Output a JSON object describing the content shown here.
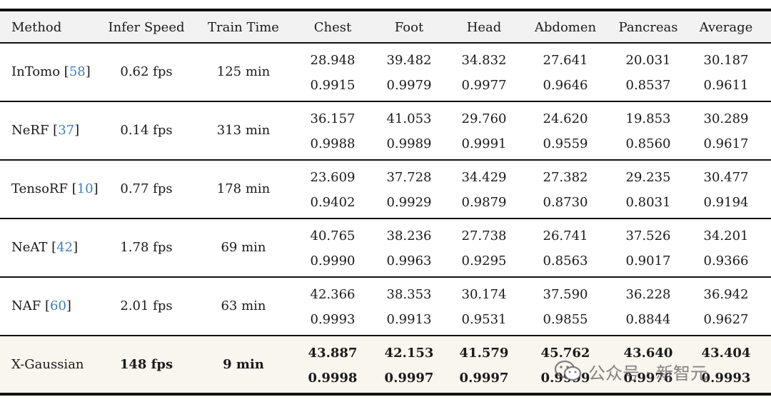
{
  "headers": [
    "Method",
    "Infer Speed",
    "Train Time",
    "Chest",
    "Foot",
    "Head",
    "Abdomen",
    "Pancreas",
    "Average"
  ],
  "rows": [
    {
      "method": "InTomo",
      "ref": "58",
      "speed": "0.62 fps",
      "time": "125 min",
      "psnr": [
        "28.948",
        "39.482",
        "34.832",
        "27.641",
        "20.031",
        "30.187"
      ],
      "ssim": [
        "0.9915",
        "0.9979",
        "0.9977",
        "0.9646",
        "0.8537",
        "0.9611"
      ]
    },
    {
      "method": "NeRF",
      "ref": "37",
      "speed": "0.14 fps",
      "time": "313 min",
      "psnr": [
        "36.157",
        "41.053",
        "29.760",
        "24.620",
        "19.853",
        "30.289"
      ],
      "ssim": [
        "0.9988",
        "0.9989",
        "0.9991",
        "0.9559",
        "0.8560",
        "0.9617"
      ]
    },
    {
      "method": "TensoRF",
      "ref": "10",
      "speed": "0.77 fps",
      "time": "178 min",
      "psnr": [
        "23.609",
        "37.728",
        "34.429",
        "27.382",
        "29.235",
        "30.477"
      ],
      "ssim": [
        "0.9402",
        "0.9929",
        "0.9879",
        "0.8730",
        "0.8031",
        "0.9194"
      ]
    },
    {
      "method": "NeAT",
      "ref": "42",
      "speed": "1.78 fps",
      "time": "69 min",
      "psnr": [
        "40.765",
        "38.236",
        "27.738",
        "26.741",
        "37.526",
        "34.201"
      ],
      "ssim": [
        "0.9990",
        "0.9963",
        "0.9295",
        "0.8563",
        "0.9017",
        "0.9366"
      ]
    },
    {
      "method": "NAF",
      "ref": "60",
      "speed": "2.01 fps",
      "time": "63 min",
      "psnr": [
        "42.366",
        "38.353",
        "30.174",
        "37.590",
        "36.228",
        "36.942"
      ],
      "ssim": [
        "0.9993",
        "0.9913",
        "0.9531",
        "0.9855",
        "0.8844",
        "0.9627"
      ]
    },
    {
      "method": "X-Gaussian",
      "ref": "",
      "speed": "148 fps",
      "time": "9 min",
      "psnr": [
        "43.887",
        "42.153",
        "41.579",
        "45.762",
        "43.640",
        "43.404"
      ],
      "ssim": [
        "0.9998",
        "0.9997",
        "0.9997",
        "0.9999",
        "0.9976",
        "0.9993"
      ],
      "highlight": true
    }
  ],
  "watermark": {
    "text": "公众号 · 新智元",
    "icon": "wechat-icon"
  }
}
